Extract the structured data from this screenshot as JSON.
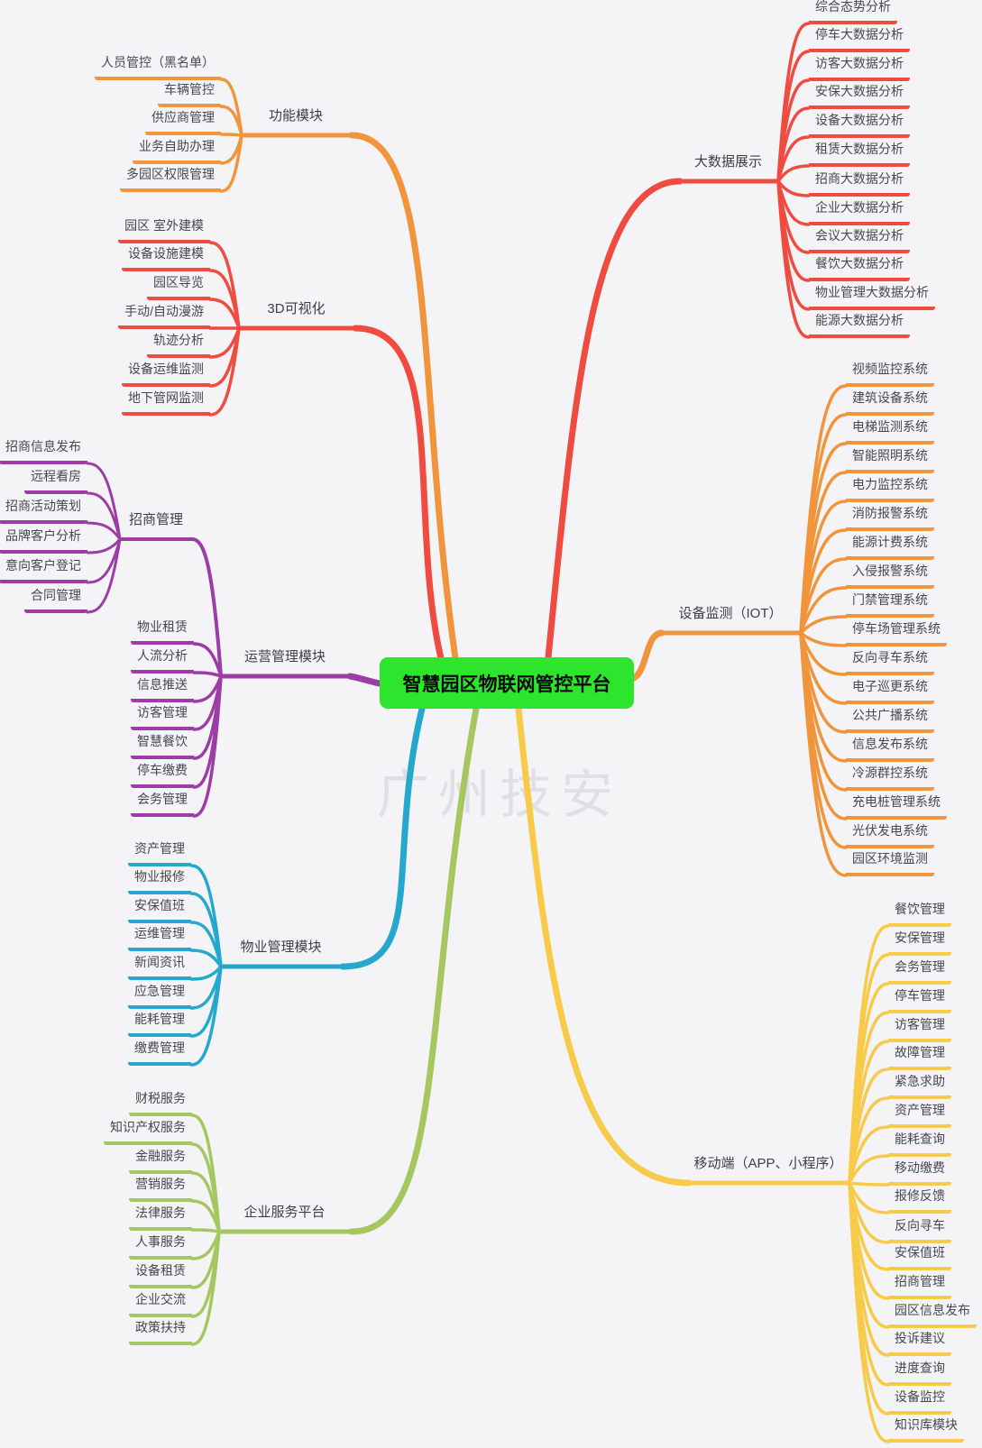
{
  "title": "智慧园区物联网管控平台",
  "title_bg_color": "#2ce52c",
  "watermark": "广州技安",
  "background_color": "#f4f4f7",
  "branches": [
    {
      "label": "功能模块",
      "color": "#f0953b",
      "children": [
        {
          "label": "人员管控（黑名单）"
        },
        {
          "label": "车辆管控"
        },
        {
          "label": "供应商管理"
        },
        {
          "label": "业务自助办理"
        },
        {
          "label": "多园区权限管理"
        }
      ]
    },
    {
      "label": "3D可视化",
      "color": "#f04b40",
      "children": [
        {
          "label": "园区 室外建模"
        },
        {
          "label": "设备设施建模"
        },
        {
          "label": "园区导览"
        },
        {
          "label": "手动/自动漫游"
        },
        {
          "label": "轨迹分析"
        },
        {
          "label": "设备运维监测"
        },
        {
          "label": "地下管网监测"
        }
      ]
    },
    {
      "label": "运营管理模块",
      "color": "#9c3da6",
      "children": [
        {
          "label": "招商管理",
          "children": [
            {
              "label": "招商信息发布"
            },
            {
              "label": "远程看房"
            },
            {
              "label": "招商活动策划"
            },
            {
              "label": "品牌客户分析"
            },
            {
              "label": "意向客户登记"
            },
            {
              "label": "合同管理"
            }
          ]
        },
        {
          "label": "物业租赁"
        },
        {
          "label": "人流分析"
        },
        {
          "label": "信息推送"
        },
        {
          "label": "访客管理"
        },
        {
          "label": "智慧餐饮"
        },
        {
          "label": "停车缴费"
        },
        {
          "label": "会务管理"
        }
      ]
    },
    {
      "label": "物业管理模块",
      "color": "#26a8ce",
      "children": [
        {
          "label": "资产管理"
        },
        {
          "label": "物业报修"
        },
        {
          "label": "安保值班"
        },
        {
          "label": "运维管理"
        },
        {
          "label": "新闻资讯"
        },
        {
          "label": "应急管理"
        },
        {
          "label": "能耗管理"
        },
        {
          "label": "缴费管理"
        }
      ]
    },
    {
      "label": "企业服务平台",
      "color": "#a5c75f",
      "children": [
        {
          "label": "财税服务"
        },
        {
          "label": "知识产权服务"
        },
        {
          "label": "金融服务"
        },
        {
          "label": "营销服务"
        },
        {
          "label": "法律服务"
        },
        {
          "label": "人事服务"
        },
        {
          "label": "设备租赁"
        },
        {
          "label": "企业交流"
        },
        {
          "label": "政策扶持"
        }
      ]
    },
    {
      "label": "大数据展示",
      "color": "#f04b40",
      "children": [
        {
          "label": "综合态势分析"
        },
        {
          "label": "停车大数据分析"
        },
        {
          "label": "访客大数据分析"
        },
        {
          "label": "安保大数据分析"
        },
        {
          "label": "设备大数据分析"
        },
        {
          "label": "租赁大数据分析"
        },
        {
          "label": "招商大数据分析"
        },
        {
          "label": "企业大数据分析"
        },
        {
          "label": "会议大数据分析"
        },
        {
          "label": "餐饮大数据分析"
        },
        {
          "label": "物业管理大数据分析"
        },
        {
          "label": "能源大数据分析"
        }
      ]
    },
    {
      "label": "设备监测（IOT）",
      "color": "#f0953b",
      "children": [
        {
          "label": "视频监控系统"
        },
        {
          "label": "建筑设备系统"
        },
        {
          "label": "电梯监测系统"
        },
        {
          "label": "智能照明系统"
        },
        {
          "label": "电力监控系统"
        },
        {
          "label": "消防报警系统"
        },
        {
          "label": "能源计费系统"
        },
        {
          "label": "入侵报警系统"
        },
        {
          "label": "门禁管理系统"
        },
        {
          "label": "停车场管理系统"
        },
        {
          "label": "反向寻车系统"
        },
        {
          "label": "电子巡更系统"
        },
        {
          "label": "公共广播系统"
        },
        {
          "label": "信息发布系统"
        },
        {
          "label": "冷源群控系统"
        },
        {
          "label": "充电桩管理系统"
        },
        {
          "label": "光伏发电系统"
        },
        {
          "label": "园区环境监测"
        }
      ]
    },
    {
      "label": "移动端（APP、小程序）",
      "color": "#f8ca49",
      "children": [
        {
          "label": "餐饮管理"
        },
        {
          "label": "安保管理"
        },
        {
          "label": "会务管理"
        },
        {
          "label": "停车管理"
        },
        {
          "label": "访客管理"
        },
        {
          "label": "故障管理"
        },
        {
          "label": "紧急求助"
        },
        {
          "label": "资产管理"
        },
        {
          "label": "能耗查询"
        },
        {
          "label": "移动缴费"
        },
        {
          "label": "报修反馈"
        },
        {
          "label": "反向寻车"
        },
        {
          "label": "安保值班"
        },
        {
          "label": "招商管理"
        },
        {
          "label": "园区信息发布"
        },
        {
          "label": "投诉建议"
        },
        {
          "label": "进度查询"
        },
        {
          "label": "设备监控"
        },
        {
          "label": "知识库模块"
        }
      ]
    }
  ]
}
